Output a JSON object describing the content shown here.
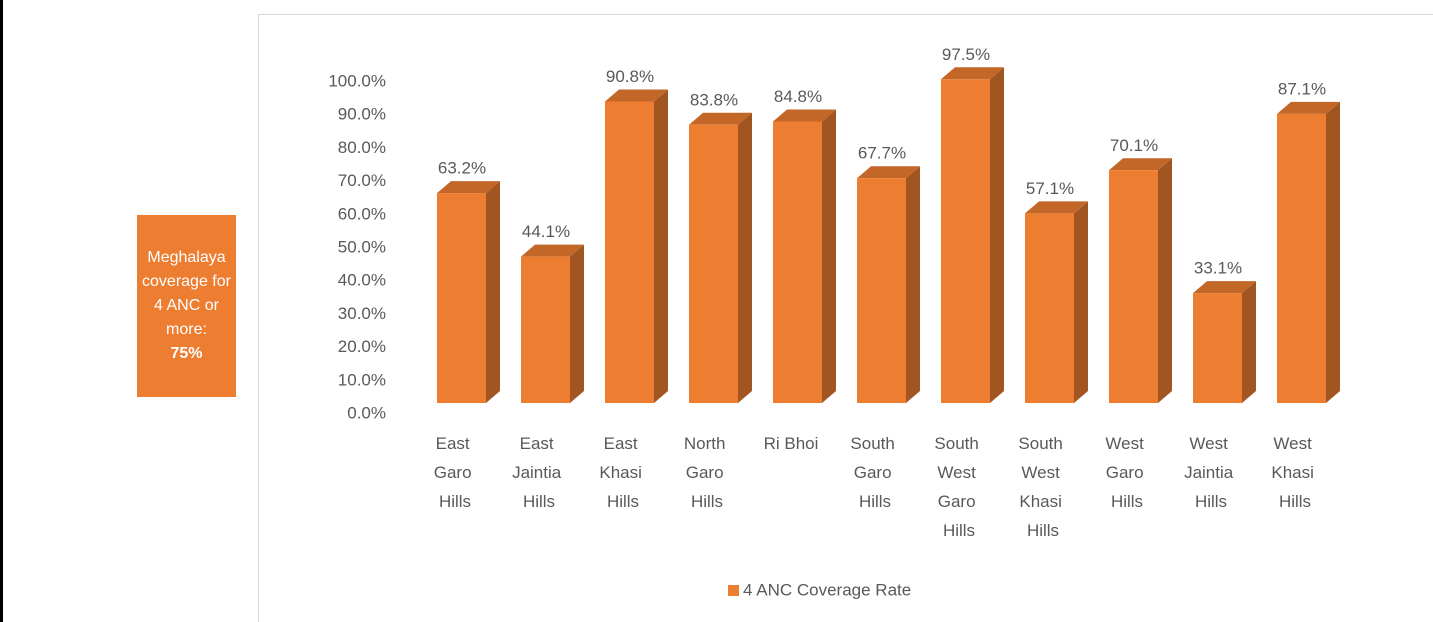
{
  "chart_data": {
    "type": "bar3d",
    "annotation": {
      "text": "Meghalaya coverage for 4 ANC or more:",
      "emphasis": "75%"
    },
    "categories": [
      "East Garo Hills",
      "East Jaintia Hills",
      "East Khasi Hills",
      "North Garo Hills",
      "Ri Bhoi",
      "South Garo Hills",
      "South West Garo Hills",
      "South West Khasi Hills",
      "West Garo Hills",
      "West Jaintia Hills",
      "West Khasi Hills"
    ],
    "series": [
      {
        "name": "4 ANC Coverage Rate",
        "color": "#ed7d31",
        "values": [
          63.2,
          44.1,
          90.8,
          83.8,
          84.8,
          67.7,
          97.5,
          57.1,
          70.1,
          33.1,
          87.1
        ],
        "value_labels": [
          "63.2%",
          "44.1%",
          "90.8%",
          "83.8%",
          "84.8%",
          "67.7%",
          "97.5%",
          "57.1%",
          "70.1%",
          "33.1%",
          "87.1%"
        ]
      }
    ],
    "ylim": [
      0,
      100
    ],
    "yticks": [
      {
        "value": 0,
        "label": "0.0%"
      },
      {
        "value": 10,
        "label": "10.0%"
      },
      {
        "value": 20,
        "label": "20.0%"
      },
      {
        "value": 30,
        "label": "30.0%"
      },
      {
        "value": 40,
        "label": "40.0%"
      },
      {
        "value": 50,
        "label": "50.0%"
      },
      {
        "value": 60,
        "label": "60.0%"
      },
      {
        "value": 70,
        "label": "70.0%"
      },
      {
        "value": 80,
        "label": "80.0%"
      },
      {
        "value": 90,
        "label": "90.0%"
      },
      {
        "value": 100,
        "label": "100.0%"
      }
    ],
    "grid": false,
    "legend": "bottom"
  }
}
